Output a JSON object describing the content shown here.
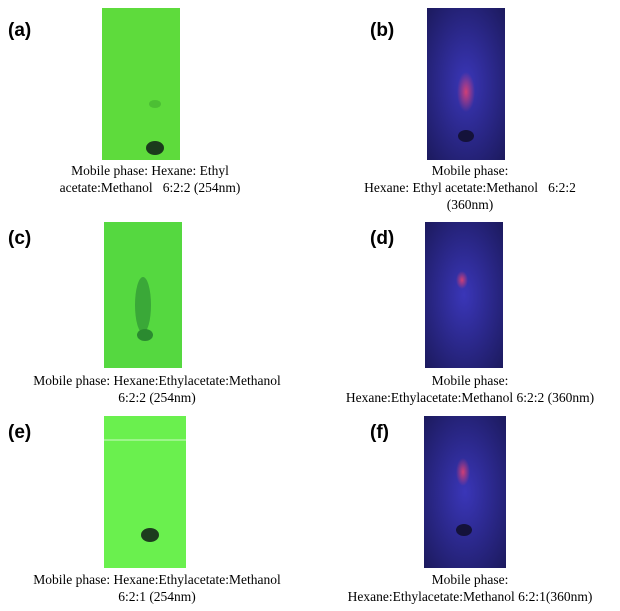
{
  "panels": [
    {
      "label": "(a)",
      "caption": [
        "Mobile phase: Hexane: Ethyl",
        "acetate:Methanol   6:2:2 (254nm)"
      ]
    },
    {
      "label": "(b)",
      "caption": [
        "Mobile phase:",
        "Hexane: Ethyl acetate:Methanol   6:2:2",
        "(360nm)"
      ]
    },
    {
      "label": "(c)",
      "caption": [
        "Mobile phase: Hexane:Ethylacetate:Methanol",
        "6:2:2 (254nm)"
      ]
    },
    {
      "label": "(d)",
      "caption": [
        "Mobile phase:",
        "Hexane:Ethylacetate:Methanol 6:2:2 (360nm)"
      ]
    },
    {
      "label": "(e)",
      "caption": [
        "Mobile phase: Hexane:Ethylacetate:Methanol",
        "6:2:1 (254nm)"
      ]
    },
    {
      "label": "(f)",
      "caption": [
        "Mobile phase:",
        "Hexane:Ethylacetate:Methanol 6:2:1(360nm)"
      ]
    }
  ]
}
